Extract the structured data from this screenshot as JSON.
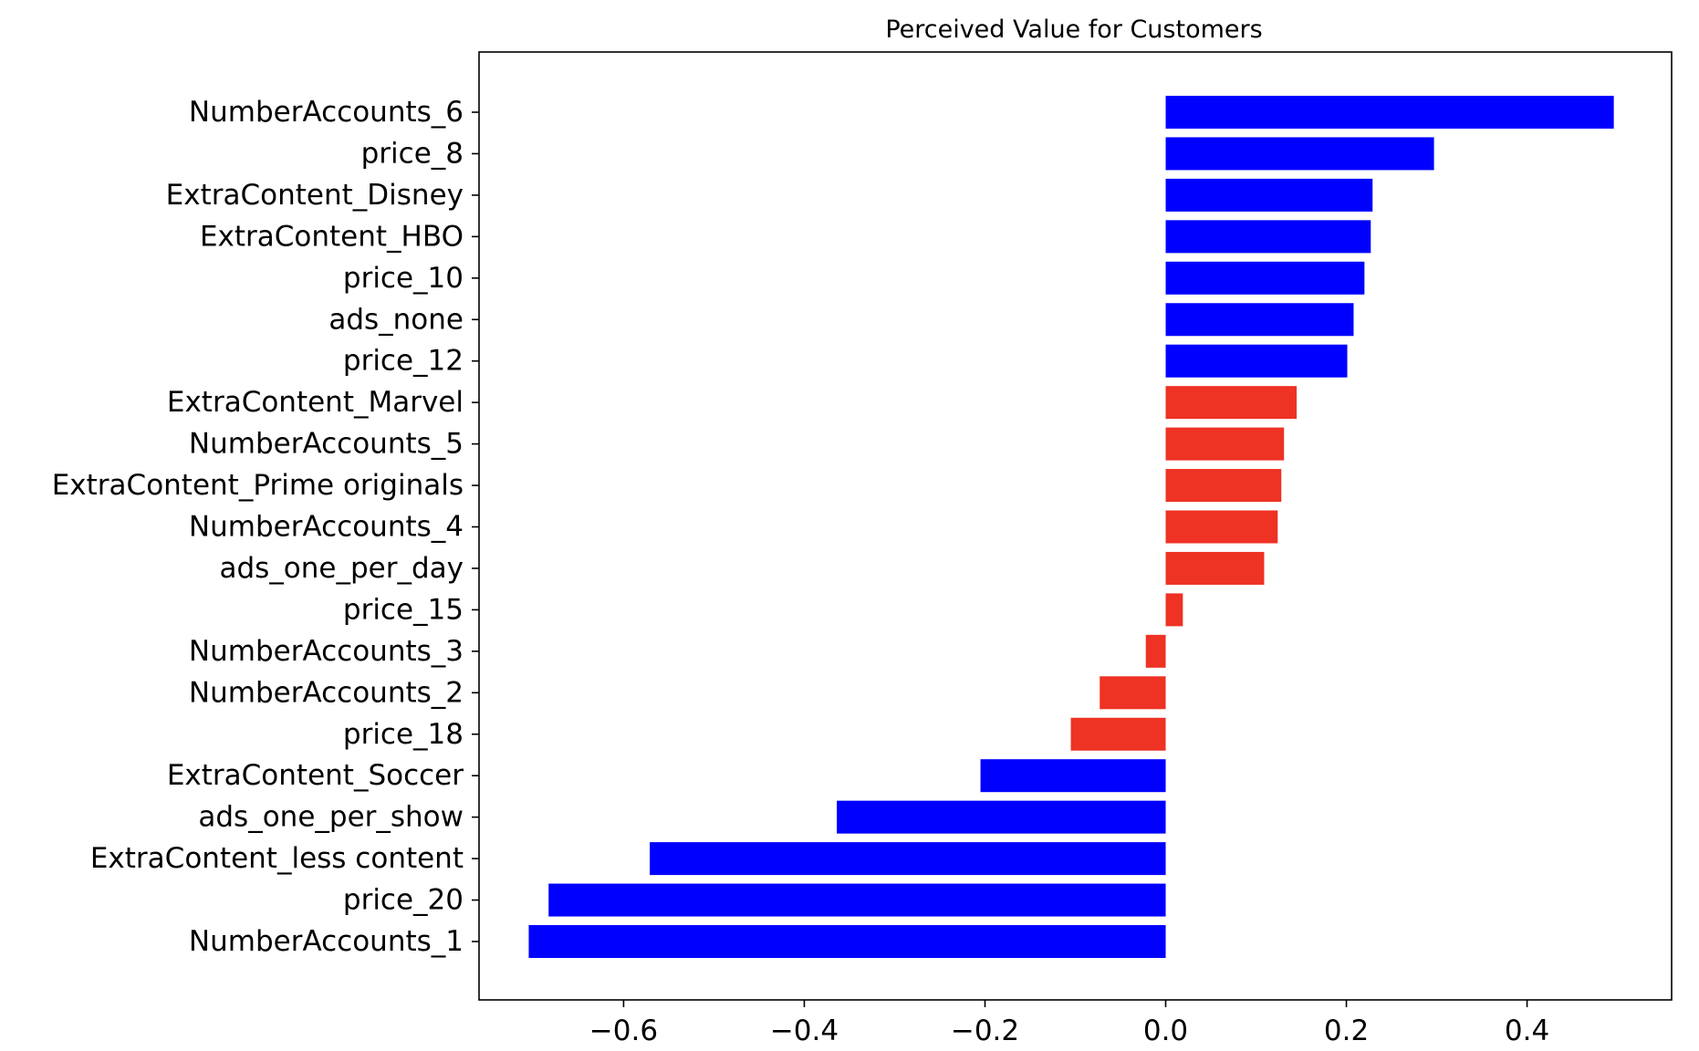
{
  "chart_data": {
    "type": "bar",
    "orientation": "horizontal",
    "title": "Perceived Value for Customers",
    "xlabel": "",
    "ylabel": "",
    "xlim": [
      -0.76,
      0.56
    ],
    "grid": false,
    "legend": "none",
    "colors": {
      "blue": "#0000ff",
      "red": "#ee3224"
    },
    "xticks": [
      {
        "value": -0.6,
        "label": "−0.6"
      },
      {
        "value": -0.4,
        "label": "−0.4"
      },
      {
        "value": -0.2,
        "label": "−0.2"
      },
      {
        "value": 0.0,
        "label": "0.0"
      },
      {
        "value": 0.2,
        "label": "0.2"
      },
      {
        "value": 0.4,
        "label": "0.4"
      }
    ],
    "bars": [
      {
        "label": "NumberAccounts_6",
        "value": 0.496,
        "color": "blue"
      },
      {
        "label": "price_8",
        "value": 0.297,
        "color": "blue"
      },
      {
        "label": "ExtraContent_Disney",
        "value": 0.229,
        "color": "blue"
      },
      {
        "label": "ExtraContent_HBO",
        "value": 0.227,
        "color": "blue"
      },
      {
        "label": "price_10",
        "value": 0.22,
        "color": "blue"
      },
      {
        "label": "ads_none",
        "value": 0.208,
        "color": "blue"
      },
      {
        "label": "price_12",
        "value": 0.201,
        "color": "blue"
      },
      {
        "label": "ExtraContent_Marvel",
        "value": 0.145,
        "color": "red"
      },
      {
        "label": "NumberAccounts_5",
        "value": 0.131,
        "color": "red"
      },
      {
        "label": "ExtraContent_Prime originals",
        "value": 0.128,
        "color": "red"
      },
      {
        "label": "NumberAccounts_4",
        "value": 0.124,
        "color": "red"
      },
      {
        "label": "ads_one_per_day",
        "value": 0.109,
        "color": "red"
      },
      {
        "label": "price_15",
        "value": 0.019,
        "color": "red"
      },
      {
        "label": "NumberAccounts_3",
        "value": -0.022,
        "color": "red"
      },
      {
        "label": "NumberAccounts_2",
        "value": -0.073,
        "color": "red"
      },
      {
        "label": "price_18",
        "value": -0.105,
        "color": "red"
      },
      {
        "label": "ExtraContent_Soccer",
        "value": -0.205,
        "color": "blue"
      },
      {
        "label": "ads_one_per_show",
        "value": -0.364,
        "color": "blue"
      },
      {
        "label": "ExtraContent_less content",
        "value": -0.571,
        "color": "blue"
      },
      {
        "label": "price_20",
        "value": -0.683,
        "color": "blue"
      },
      {
        "label": "NumberAccounts_1",
        "value": -0.705,
        "color": "blue"
      }
    ]
  }
}
